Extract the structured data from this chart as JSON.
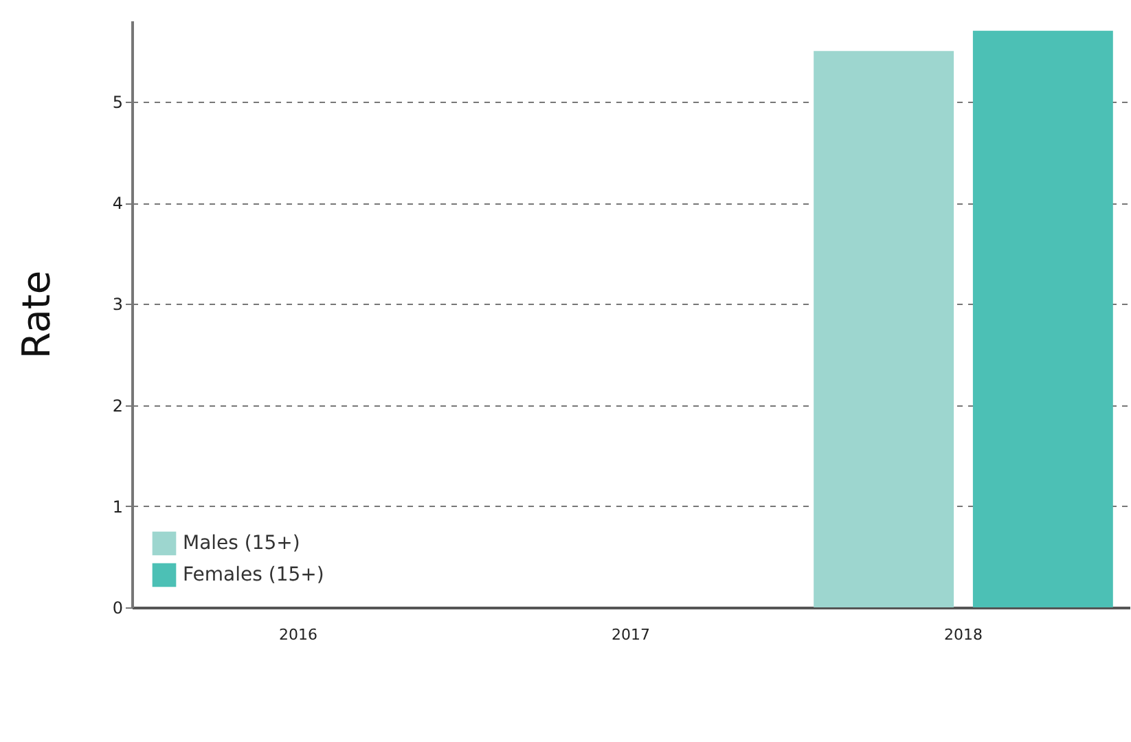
{
  "chart_data": {
    "type": "bar",
    "ylabel": "Rate",
    "categories": [
      "2016",
      "2017",
      "2018"
    ],
    "series": [
      {
        "name": "Males (15+)",
        "color": "#9dd6cf",
        "values": [
          null,
          null,
          5.5
        ]
      },
      {
        "name": "Females (15+)",
        "color": "#4cc0b5",
        "values": [
          null,
          null,
          5.7
        ]
      }
    ],
    "ylim": [
      0,
      5.8
    ],
    "yticks": [
      0,
      1,
      2,
      3,
      4,
      5
    ],
    "grid": "y",
    "legend": "bottom left"
  }
}
